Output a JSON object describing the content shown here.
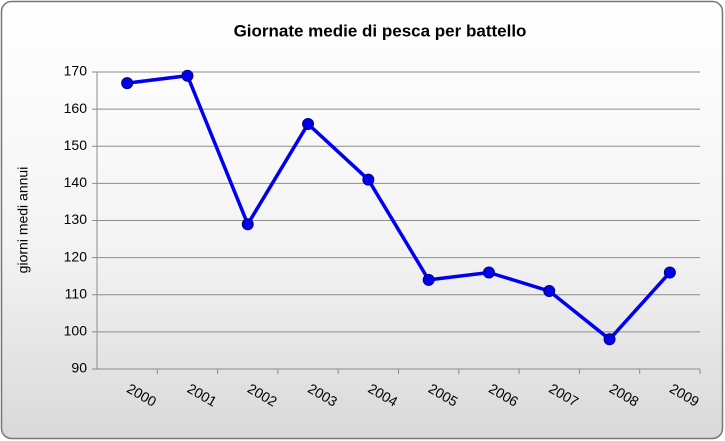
{
  "chart_data": {
    "type": "line",
    "title": "Giornate medie di pesca per battello",
    "y_label": "giorni medi annui",
    "categories": [
      "2000",
      "2001",
      "2002",
      "2003",
      "2004",
      "2005",
      "2006",
      "2007",
      "2008",
      "2009"
    ],
    "series": [
      {
        "name": "giorni medi annui",
        "color": "#0000ee",
        "values": [
          167,
          169,
          129,
          156,
          141,
          114,
          116,
          111,
          98,
          116
        ]
      }
    ],
    "ylim": [
      90,
      170
    ],
    "yticks": [
      90,
      100,
      110,
      120,
      130,
      140,
      150,
      160,
      170
    ],
    "grid": true
  }
}
